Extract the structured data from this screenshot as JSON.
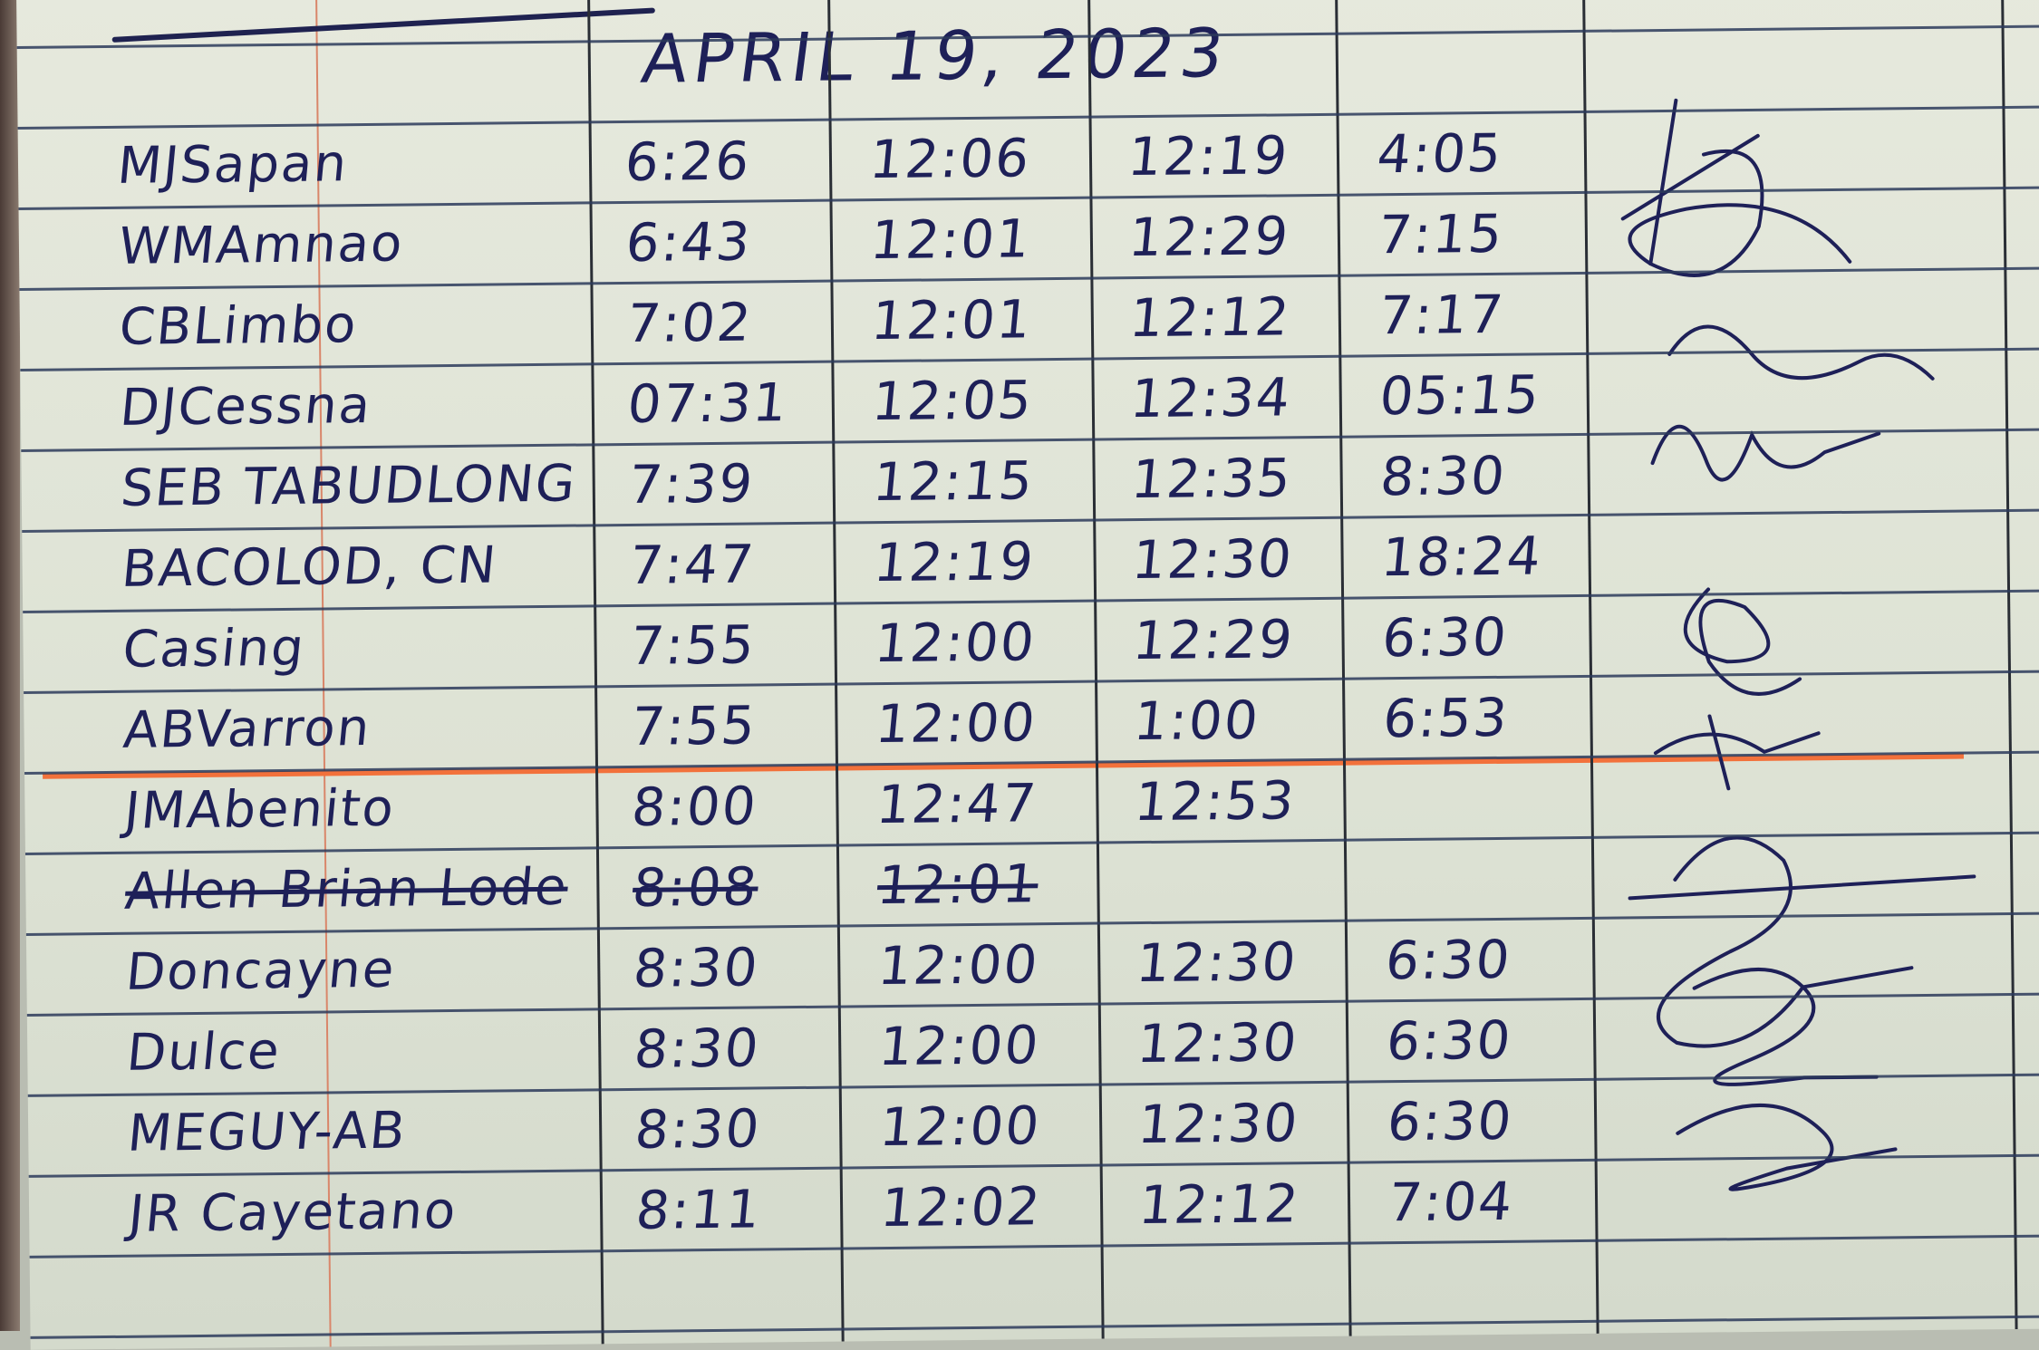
{
  "header": {
    "date": "APRIL 19, 2023"
  },
  "rows": [
    {
      "name": "MJSapan",
      "in_am": "6:26",
      "out_am": "12:06",
      "in_pm": "12:19",
      "out_pm": "4:05"
    },
    {
      "name": "WMAmnao",
      "in_am": "6:43",
      "out_am": "12:01",
      "in_pm": "12:29",
      "out_pm": "7:15"
    },
    {
      "name": "CBLimbo",
      "in_am": "7:02",
      "out_am": "12:01",
      "in_pm": "12:12",
      "out_pm": "7:17"
    },
    {
      "name": "DJCessna",
      "in_am": "07:31",
      "out_am": "12:05",
      "in_pm": "12:34",
      "out_pm": "05:15"
    },
    {
      "name": "SEB TABUDLONG",
      "in_am": "7:39",
      "out_am": "12:15",
      "in_pm": "12:35",
      "out_pm": "8:30"
    },
    {
      "name": "BACOLOD, CN",
      "in_am": "7:47",
      "out_am": "12:19",
      "in_pm": "12:30",
      "out_pm": "18:24"
    },
    {
      "name": "Casing",
      "in_am": "7:55",
      "out_am": "12:00",
      "in_pm": "12:29",
      "out_pm": "6:30"
    },
    {
      "name": "ABVarron",
      "in_am": "7:55",
      "out_am": "12:00",
      "in_pm": "1:00",
      "out_pm": "6:53"
    },
    {
      "name": "JMAbenito",
      "in_am": "8:00",
      "out_am": "12:47",
      "in_pm": "12:53",
      "out_pm": ""
    },
    {
      "name": "Allen Brian Lode",
      "in_am": "8:08",
      "out_am": "12:01",
      "in_pm": "",
      "out_pm": "",
      "crossed_out": true
    },
    {
      "name": "Doncayne",
      "in_am": "8:30",
      "out_am": "12:00",
      "in_pm": "12:30",
      "out_pm": "6:30"
    },
    {
      "name": "Dulce",
      "in_am": "8:30",
      "out_am": "12:00",
      "in_pm": "12:30",
      "out_pm": "6:30"
    },
    {
      "name": "MEGUY-AB",
      "in_am": "8:30",
      "out_am": "12:00",
      "in_pm": "12:30",
      "out_pm": "6:30"
    },
    {
      "name": "JR Cayetano",
      "in_am": "8:11",
      "out_am": "12:02",
      "in_pm": "12:12",
      "out_pm": "7:04"
    }
  ],
  "colors": {
    "ink": "#1e2058",
    "paper": "#e2e6d8",
    "highlight_line": "#f2713b"
  }
}
